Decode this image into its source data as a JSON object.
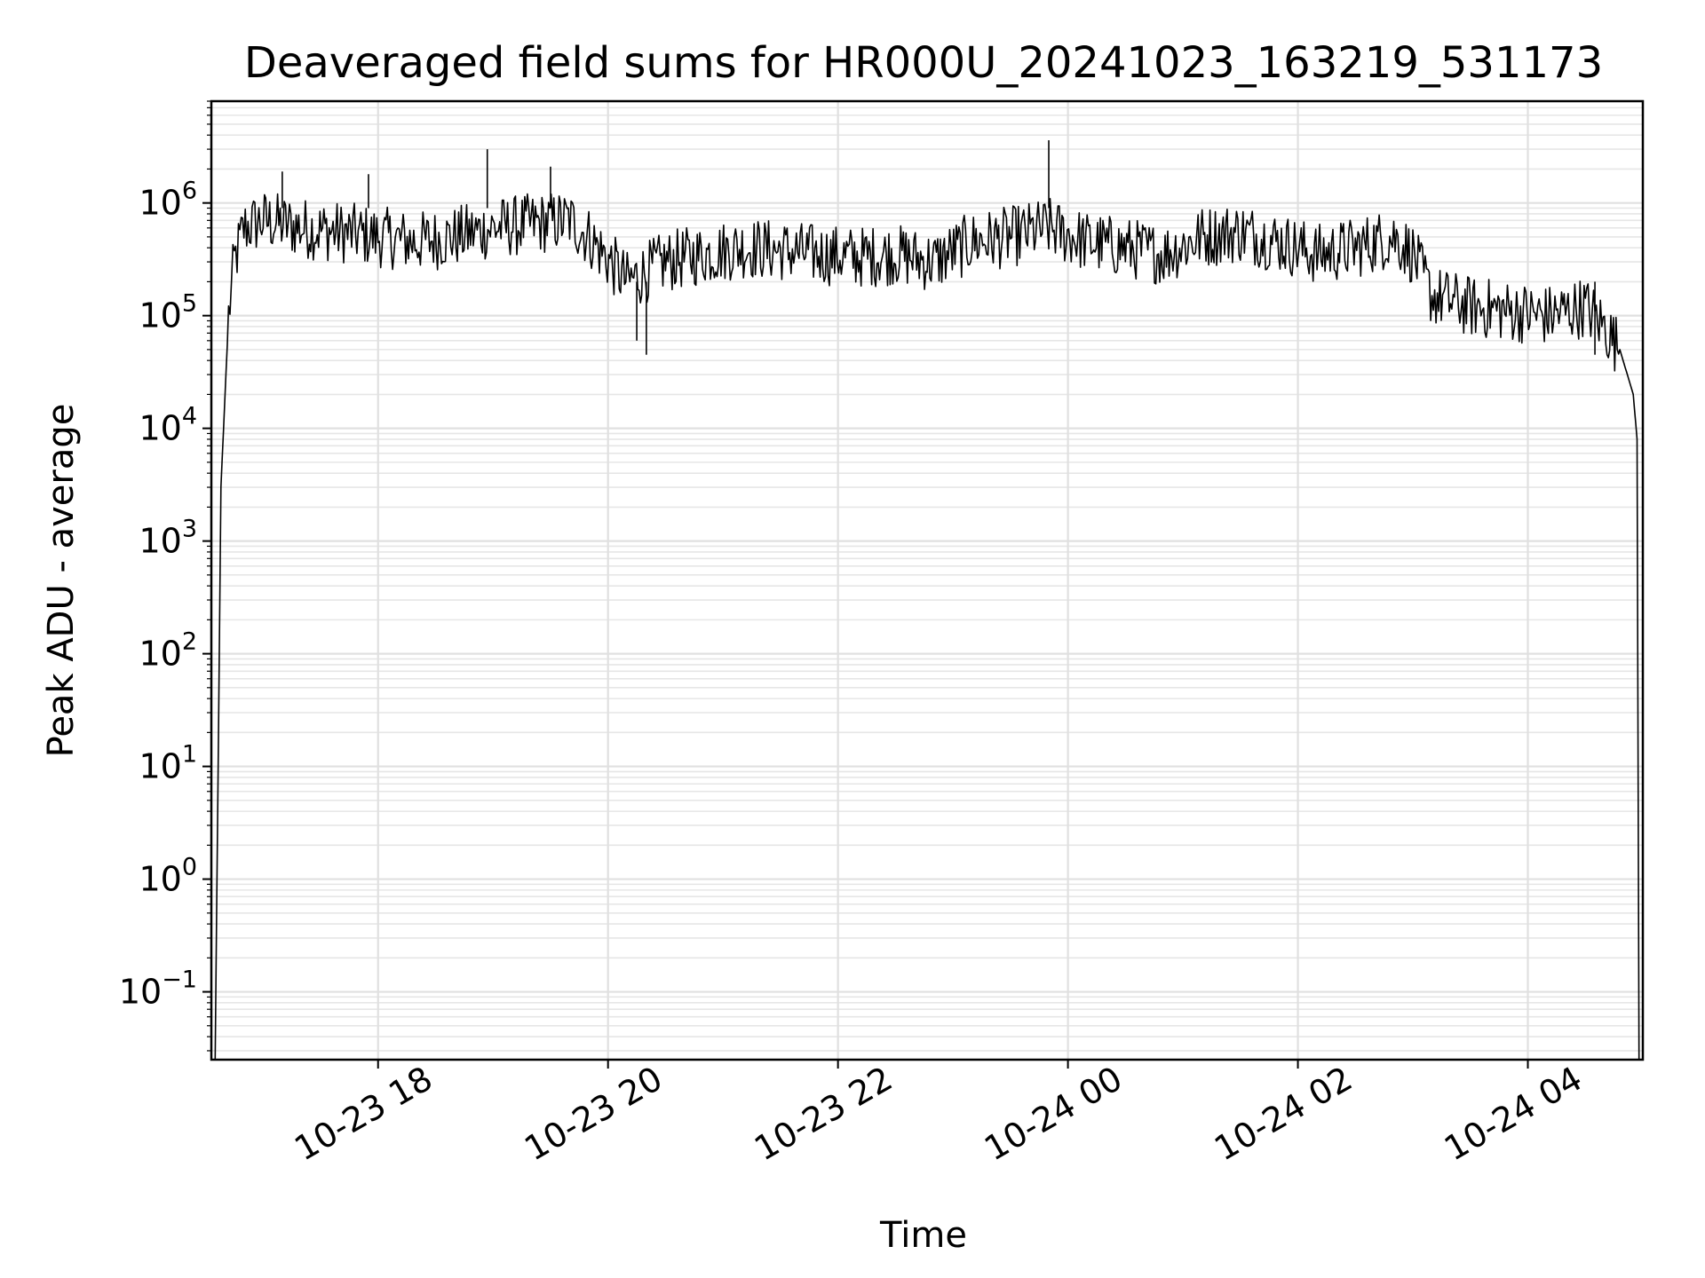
{
  "chart_data": {
    "type": "line",
    "title": "Deaveraged field sums for HR000U_20241023_163219_531173",
    "xlabel": "Time",
    "ylabel": "Peak ADU - average",
    "yscale": "log",
    "ylim": [
      0.025,
      8000000
    ],
    "xlim": [
      "2024-10-23 16:33",
      "2024-10-24 05:00"
    ],
    "grid": "major and minor",
    "x_tick_labels": [
      "10-23 18",
      "10-23 20",
      "10-23 22",
      "10-24 00",
      "10-24 02",
      "10-24 04"
    ],
    "x_ticks": [
      "2024-10-23 18:00",
      "2024-10-23 20:00",
      "2024-10-23 22:00",
      "2024-10-24 00:00",
      "2024-10-24 02:00",
      "2024-10-24 04:00"
    ],
    "y_ticks": [
      {
        "base": "10",
        "exp": "6",
        "value": 1000000
      },
      {
        "base": "10",
        "exp": "5",
        "value": 100000
      },
      {
        "base": "10",
        "exp": "4",
        "value": 10000
      },
      {
        "base": "10",
        "exp": "3",
        "value": 1000
      },
      {
        "base": "10",
        "exp": "2",
        "value": 100
      },
      {
        "base": "10",
        "exp": "1",
        "value": 10
      },
      {
        "base": "10",
        "exp": "0",
        "value": 1
      },
      {
        "base": "10",
        "exp": "−1",
        "value": 0.1
      }
    ],
    "series": [
      {
        "color": "#000000",
        "x": [
          "2024-10-23 16:35",
          "2024-10-23 16:38",
          "2024-10-23 16:42",
          "2024-10-23 16:45",
          "2024-10-23 16:50",
          "2024-10-23 17:00",
          "2024-10-23 17:20",
          "2024-10-23 17:40",
          "2024-10-23 18:00",
          "2024-10-23 18:20",
          "2024-10-23 18:40",
          "2024-10-23 19:00",
          "2024-10-23 19:20",
          "2024-10-23 19:40",
          "2024-10-23 19:50",
          "2024-10-23 20:10",
          "2024-10-23 20:30",
          "2024-10-23 20:50",
          "2024-10-23 21:10",
          "2024-10-23 21:30",
          "2024-10-23 21:50",
          "2024-10-23 22:10",
          "2024-10-23 22:30",
          "2024-10-23 22:50",
          "2024-10-23 23:10",
          "2024-10-23 23:30",
          "2024-10-23 23:50",
          "2024-10-24 00:10",
          "2024-10-24 00:30",
          "2024-10-24 00:50",
          "2024-10-24 01:10",
          "2024-10-24 01:30",
          "2024-10-24 01:50",
          "2024-10-24 02:10",
          "2024-10-24 02:30",
          "2024-10-24 02:50",
          "2024-10-24 03:00",
          "2024-10-24 03:10",
          "2024-10-24 03:30",
          "2024-10-24 03:50",
          "2024-10-24 04:10",
          "2024-10-24 04:30",
          "2024-10-24 04:40",
          "2024-10-24 04:48",
          "2024-10-24 04:55",
          "2024-10-24 04:57",
          "2024-10-24 04:58"
        ],
        "y": [
          0.025,
          3000,
          100000,
          300000,
          600000,
          700000,
          600000,
          550000,
          500000,
          450000,
          500000,
          600000,
          650000,
          700000,
          500000,
          200000,
          300000,
          350000,
          400000,
          380000,
          350000,
          330000,
          350000,
          300000,
          450000,
          500000,
          600000,
          450000,
          400000,
          350000,
          500000,
          550000,
          450000,
          350000,
          400000,
          500000,
          350000,
          150000,
          120000,
          110000,
          100000,
          120000,
          80000,
          50000,
          20000,
          8000,
          0.025
        ],
        "peaks": [
          {
            "x": "2024-10-23 18:57",
            "y": 3000000
          },
          {
            "x": "2024-10-23 19:30",
            "y": 2100000
          },
          {
            "x": "2024-10-23 23:50",
            "y": 3600000
          },
          {
            "x": "2024-10-23 17:10",
            "y": 1900000
          },
          {
            "x": "2024-10-23 17:55",
            "y": 1800000
          }
        ],
        "dips": [
          {
            "x": "2024-10-23 20:20",
            "y": 45000
          },
          {
            "x": "2024-10-23 20:15",
            "y": 60000
          },
          {
            "x": "2024-10-24 04:35",
            "y": 45000
          }
        ]
      }
    ]
  }
}
